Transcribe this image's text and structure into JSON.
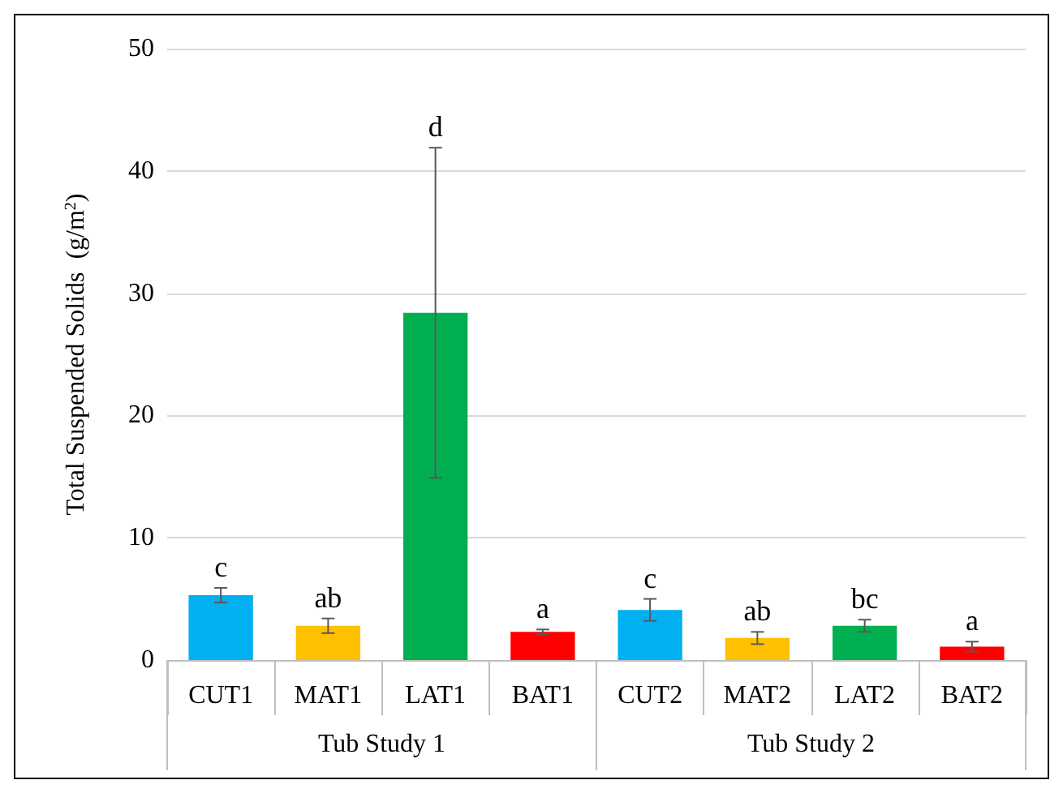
{
  "chart_data": {
    "type": "bar",
    "ylabel": "Total Suspended Solids  (g/m$^{2}$)",
    "categories": [
      "CUT1",
      "MAT1",
      "LAT1",
      "BAT1",
      "CUT2",
      "MAT2",
      "LAT2",
      "BAT2"
    ],
    "values": [
      5.3,
      2.8,
      28.4,
      2.3,
      4.1,
      1.8,
      2.8,
      1.1
    ],
    "errors": [
      0.6,
      0.6,
      13.5,
      0.2,
      0.9,
      0.5,
      0.5,
      0.4
    ],
    "colors": [
      "#00b0f0",
      "#ffc000",
      "#00b050",
      "#ff0000",
      "#00b0f0",
      "#ffc000",
      "#00b050",
      "#ff0000"
    ],
    "ylim": [
      0,
      50
    ],
    "yticks": [
      0,
      10,
      20,
      30,
      40,
      50
    ],
    "grid": "y",
    "annotations": [
      {
        "text": "c",
        "x": "CUT1",
        "y": 5.9
      },
      {
        "text": "ab",
        "x": "MAT1",
        "y": 3.4
      },
      {
        "text": "d",
        "x": "LAT1",
        "y": 41.9
      },
      {
        "text": "a",
        "x": "BAT1",
        "y": 2.5
      },
      {
        "text": "c",
        "x": "CUT2",
        "y": 5.0
      },
      {
        "text": "ab",
        "x": "MAT2",
        "y": 2.3
      },
      {
        "text": "bc",
        "x": "LAT2",
        "y": 3.3
      },
      {
        "text": "a",
        "x": "BAT2",
        "y": 1.5
      },
      "Tub Study 1",
      "Tub Study 2"
    ]
  }
}
